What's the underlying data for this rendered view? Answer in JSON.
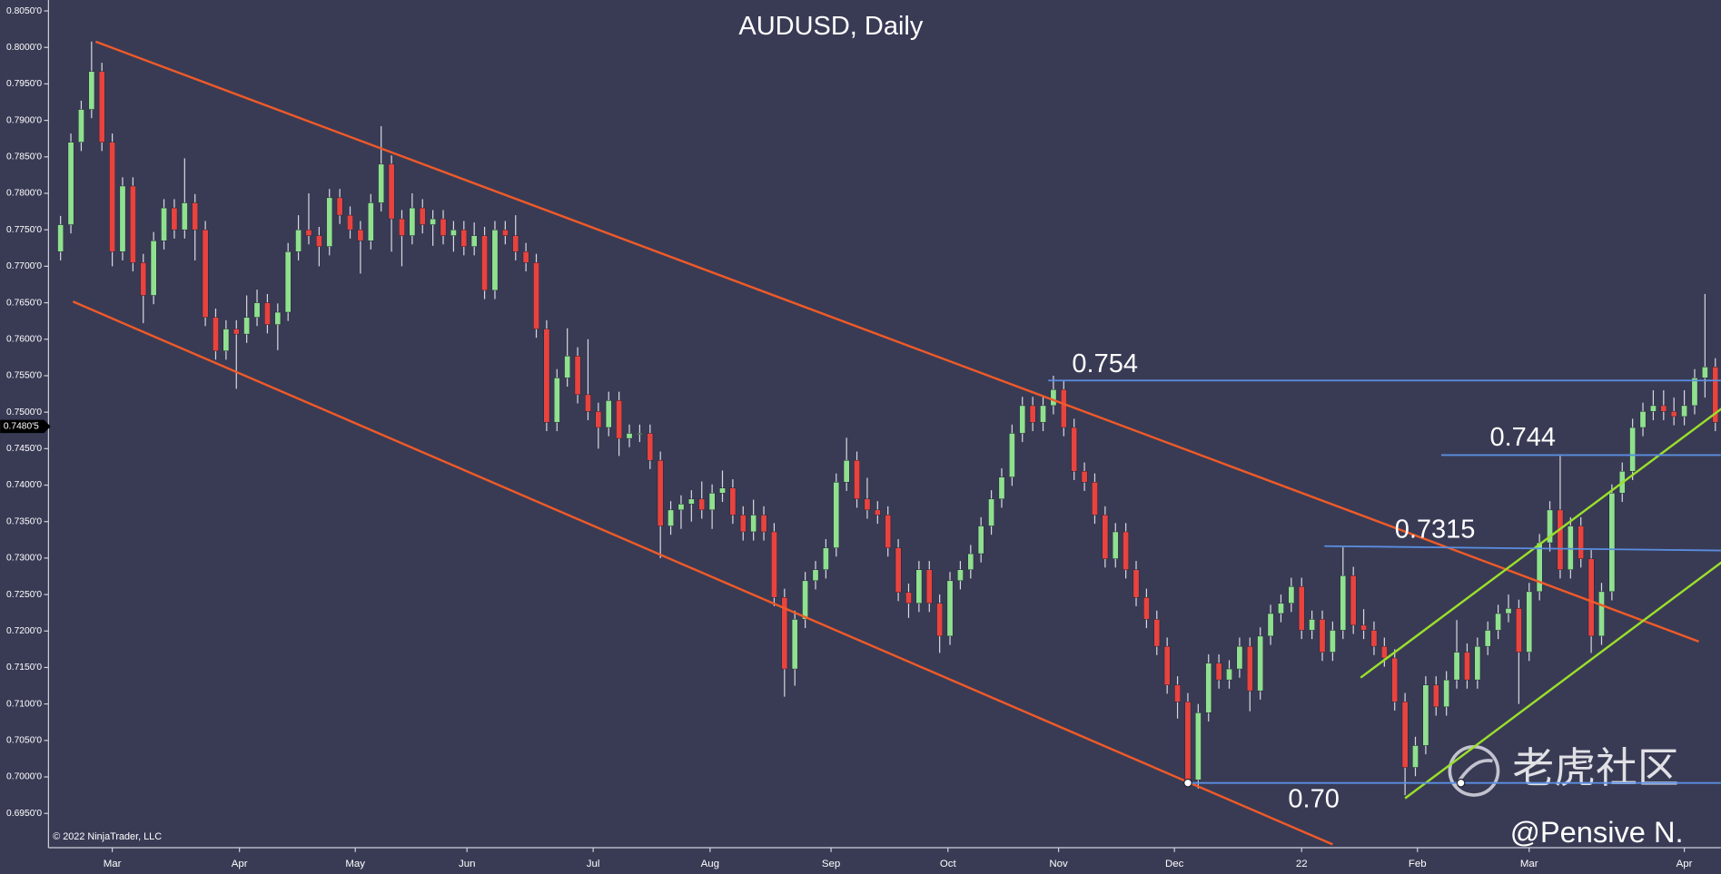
{
  "chart_data": {
    "type": "candlestick",
    "title": "AUDUSD, Daily",
    "copyright": "© 2022 NinjaTrader, LLC",
    "watermark": "老虎社区",
    "author": "@Pensive N.",
    "annotations": [
      "0.754",
      "0.744",
      "0.7315",
      "0.70"
    ],
    "up_color": "#8fe08f",
    "down_color": "#e8433f",
    "open": [
      0.772,
      0.7757,
      0.787,
      0.7915,
      0.7967,
      0.787,
      0.772,
      0.781,
      0.7705,
      0.766,
      0.7735,
      0.778,
      0.775,
      0.7787,
      0.775,
      0.763,
      0.7584,
      0.7614,
      0.7607,
      0.763,
      0.765,
      0.762,
      0.7637,
      0.772,
      0.775,
      0.7742,
      0.7727,
      0.7794,
      0.777,
      0.775,
      0.7735,
      0.7787,
      0.784,
      0.7765,
      0.7742,
      0.778,
      0.7757,
      0.7765,
      0.7742,
      0.775,
      0.7727,
      0.7742,
      0.7667,
      0.775,
      0.7742,
      0.772,
      0.7705,
      0.7614,
      0.7486,
      0.7547,
      0.7577,
      0.7524,
      0.7501,
      0.7479,
      0.7516,
      0.7464,
      0.7471,
      0.7471,
      0.7434,
      0.7344,
      0.7366,
      0.7374,
      0.7381,
      0.7366,
      0.7389,
      0.7396,
      0.7359,
      0.7336,
      0.7359,
      0.7336,
      0.7246,
      0.7148,
      0.7216,
      0.7269,
      0.7284,
      0.7314,
      0.7404,
      0.7434,
      0.7381,
      0.7366,
      0.7359,
      0.7314,
      0.7253,
      0.7238,
      0.7284,
      0.7238,
      0.7193,
      0.7269,
      0.7284,
      0.7306,
      0.7344,
      0.7381,
      0.7411,
      0.7471,
      0.7509,
      0.7486,
      0.7509,
      0.7531,
      0.7479,
      0.7419,
      0.7404,
      0.7359,
      0.7299,
      0.7336,
      0.7284,
      0.7246,
      0.7216,
      0.7179,
      0.7126,
      0.7103,
      0.6996,
      0.7088,
      0.7156,
      0.7133,
      0.7148,
      0.7179,
      0.7118,
      0.7193,
      0.7224,
      0.7238,
      0.7261,
      0.7201,
      0.7216,
      0.7171,
      0.7201,
      0.7276,
      0.7208,
      0.7201,
      0.7179,
      0.7163,
      0.7103,
      0.7013,
      0.7043,
      0.7126,
      0.7096,
      0.7133,
      0.7171,
      0.7133,
      0.7179,
      0.7201,
      0.7224,
      0.7231,
      0.7171,
      0.7254,
      0.7321,
      0.7366,
      0.7284,
      0.7344,
      0.7299,
      0.7193,
      0.7254,
      0.7389,
      0.7419,
      0.7479,
      0.7501,
      0.7509,
      0.7501,
      0.7494,
      0.7509,
      0.7547,
      0.7562
    ],
    "high": [
      0.7769,
      0.7882,
      0.7927,
      0.8008,
      0.7979,
      0.7882,
      0.7822,
      0.7822,
      0.7717,
      0.7747,
      0.7792,
      0.7792,
      0.7848,
      0.7799,
      0.7762,
      0.7642,
      0.7626,
      0.7626,
      0.766,
      0.7668,
      0.7662,
      0.7649,
      0.7732,
      0.777,
      0.78,
      0.7754,
      0.7806,
      0.7806,
      0.7782,
      0.7762,
      0.7799,
      0.7892,
      0.7852,
      0.7777,
      0.78,
      0.7792,
      0.7777,
      0.7777,
      0.7762,
      0.7762,
      0.776,
      0.7754,
      0.7762,
      0.7762,
      0.777,
      0.7732,
      0.7717,
      0.7626,
      0.7559,
      0.7615,
      0.7589,
      0.76,
      0.7513,
      0.7528,
      0.7528,
      0.7483,
      0.7483,
      0.7483,
      0.7446,
      0.7378,
      0.7386,
      0.7393,
      0.7405,
      0.7401,
      0.742,
      0.7408,
      0.7371,
      0.738,
      0.7371,
      0.7348,
      0.7258,
      0.7228,
      0.7281,
      0.7296,
      0.7326,
      0.7416,
      0.7465,
      0.7446,
      0.741,
      0.7378,
      0.7371,
      0.7326,
      0.7265,
      0.7296,
      0.7296,
      0.725,
      0.7281,
      0.7296,
      0.7318,
      0.7356,
      0.7393,
      0.7423,
      0.7483,
      0.7521,
      0.7521,
      0.7521,
      0.755,
      0.7543,
      0.7491,
      0.7431,
      0.7416,
      0.7371,
      0.7348,
      0.7348,
      0.7296,
      0.7258,
      0.7228,
      0.7191,
      0.7138,
      0.7115,
      0.71,
      0.7168,
      0.7168,
      0.716,
      0.7191,
      0.7191,
      0.7205,
      0.7236,
      0.725,
      0.7273,
      0.7273,
      0.7228,
      0.7228,
      0.7213,
      0.7315,
      0.7288,
      0.723,
      0.7213,
      0.7191,
      0.7175,
      0.7115,
      0.7055,
      0.7138,
      0.7138,
      0.7145,
      0.7215,
      0.7183,
      0.7191,
      0.7213,
      0.7236,
      0.725,
      0.7243,
      0.7266,
      0.7333,
      0.7378,
      0.744,
      0.7356,
      0.7356,
      0.7311,
      0.7266,
      0.7401,
      0.7431,
      0.7491,
      0.7513,
      0.753,
      0.753,
      0.752,
      0.753,
      0.7559,
      0.7662,
      0.7574
    ],
    "low": [
      0.7708,
      0.7745,
      0.7858,
      0.7903,
      0.7858,
      0.77,
      0.7708,
      0.7693,
      0.7622,
      0.7648,
      0.7723,
      0.7738,
      0.7738,
      0.7708,
      0.7618,
      0.7572,
      0.7572,
      0.7532,
      0.7595,
      0.7618,
      0.7608,
      0.7585,
      0.7625,
      0.7708,
      0.773,
      0.77,
      0.7715,
      0.7758,
      0.7738,
      0.769,
      0.7723,
      0.7775,
      0.772,
      0.77,
      0.773,
      0.7745,
      0.7728,
      0.773,
      0.772,
      0.7715,
      0.7715,
      0.7655,
      0.7655,
      0.773,
      0.7708,
      0.7693,
      0.7602,
      0.7474,
      0.7474,
      0.7535,
      0.7512,
      0.7489,
      0.745,
      0.7467,
      0.744,
      0.7452,
      0.7459,
      0.7422,
      0.73,
      0.7332,
      0.734,
      0.735,
      0.7354,
      0.734,
      0.7377,
      0.7347,
      0.7324,
      0.7324,
      0.7324,
      0.7234,
      0.711,
      0.7125,
      0.7204,
      0.7257,
      0.7272,
      0.7302,
      0.7392,
      0.7369,
      0.7354,
      0.7347,
      0.7302,
      0.7241,
      0.7218,
      0.7226,
      0.7226,
      0.717,
      0.7181,
      0.7257,
      0.7272,
      0.7294,
      0.7332,
      0.7369,
      0.7399,
      0.7459,
      0.7474,
      0.7474,
      0.7497,
      0.7467,
      0.7407,
      0.7392,
      0.7347,
      0.7287,
      0.7287,
      0.7272,
      0.7234,
      0.7204,
      0.7167,
      0.7114,
      0.708,
      0.699,
      0.6984,
      0.7076,
      0.7121,
      0.7121,
      0.7136,
      0.709,
      0.7106,
      0.7181,
      0.7212,
      0.7226,
      0.7189,
      0.7189,
      0.7159,
      0.7159,
      0.7189,
      0.7196,
      0.7189,
      0.7167,
      0.7151,
      0.7091,
      0.6975,
      0.7001,
      0.7031,
      0.7084,
      0.7084,
      0.7121,
      0.7121,
      0.7121,
      0.7167,
      0.7189,
      0.7212,
      0.71,
      0.7159,
      0.7242,
      0.7309,
      0.7272,
      0.7272,
      0.7287,
      0.717,
      0.7181,
      0.7242,
      0.7377,
      0.7407,
      0.7467,
      0.7489,
      0.7489,
      0.7482,
      0.7482,
      0.7497,
      0.752,
      0.7474
    ],
    "close": [
      0.7757,
      0.787,
      0.7915,
      0.7967,
      0.787,
      0.772,
      0.781,
      0.7705,
      0.766,
      0.7735,
      0.778,
      0.775,
      0.7787,
      0.775,
      0.763,
      0.7584,
      0.7614,
      0.7607,
      0.763,
      0.765,
      0.762,
      0.7637,
      0.772,
      0.775,
      0.7742,
      0.7727,
      0.7794,
      0.777,
      0.775,
      0.7735,
      0.7787,
      0.784,
      0.7765,
      0.7742,
      0.778,
      0.7757,
      0.7765,
      0.7742,
      0.775,
      0.7727,
      0.7742,
      0.7667,
      0.775,
      0.7742,
      0.772,
      0.7705,
      0.7614,
      0.7486,
      0.7547,
      0.7577,
      0.7524,
      0.7501,
      0.7479,
      0.7516,
      0.7464,
      0.7471,
      0.7471,
      0.7434,
      0.7344,
      0.7366,
      0.7374,
      0.7381,
      0.7366,
      0.7389,
      0.7396,
      0.7359,
      0.7336,
      0.7359,
      0.7336,
      0.7246,
      0.7148,
      0.7216,
      0.7269,
      0.7284,
      0.7314,
      0.7404,
      0.7434,
      0.7381,
      0.7366,
      0.7359,
      0.7314,
      0.7253,
      0.7238,
      0.7284,
      0.7238,
      0.7193,
      0.7269,
      0.7284,
      0.7306,
      0.7344,
      0.7381,
      0.7411,
      0.7471,
      0.7509,
      0.7486,
      0.7509,
      0.7531,
      0.7479,
      0.7419,
      0.7404,
      0.7359,
      0.7299,
      0.7336,
      0.7284,
      0.7246,
      0.7216,
      0.7179,
      0.7126,
      0.7103,
      0.6996,
      0.7088,
      0.7156,
      0.7133,
      0.7148,
      0.7179,
      0.7118,
      0.7193,
      0.7224,
      0.7238,
      0.7261,
      0.7201,
      0.7216,
      0.7171,
      0.7201,
      0.7276,
      0.7208,
      0.7201,
      0.7179,
      0.7163,
      0.7103,
      0.7013,
      0.7043,
      0.7126,
      0.7096,
      0.7133,
      0.7171,
      0.7133,
      0.7179,
      0.7201,
      0.7224,
      0.7231,
      0.7171,
      0.7254,
      0.7321,
      0.7366,
      0.7284,
      0.7344,
      0.7299,
      0.7193,
      0.7254,
      0.7389,
      0.7419,
      0.7479,
      0.7501,
      0.7509,
      0.7501,
      0.7494,
      0.7509,
      0.7547,
      0.7562,
      0.7486
    ],
    "ylim": [
      0.6903,
      0.8065
    ],
    "yticks": [
      {
        "value": 0.695,
        "label": "0.6950'0"
      },
      {
        "value": 0.7,
        "label": "0.7000'0"
      },
      {
        "value": 0.705,
        "label": "0.7050'0"
      },
      {
        "value": 0.71,
        "label": "0.7100'0"
      },
      {
        "value": 0.715,
        "label": "0.7150'0"
      },
      {
        "value": 0.72,
        "label": "0.7200'0"
      },
      {
        "value": 0.725,
        "label": "0.7250'0"
      },
      {
        "value": 0.73,
        "label": "0.7300'0"
      },
      {
        "value": 0.735,
        "label": "0.7350'0"
      },
      {
        "value": 0.74,
        "label": "0.7400'0"
      },
      {
        "value": 0.745,
        "label": "0.7450'0"
      },
      {
        "value": 0.75,
        "label": "0.7500'0"
      },
      {
        "value": 0.755,
        "label": "0.7550'0"
      },
      {
        "value": 0.76,
        "label": "0.7600'0"
      },
      {
        "value": 0.765,
        "label": "0.7650'0"
      },
      {
        "value": 0.77,
        "label": "0.7700'0"
      },
      {
        "value": 0.775,
        "label": "0.7750'0"
      },
      {
        "value": 0.78,
        "label": "0.7800'0"
      },
      {
        "value": 0.785,
        "label": "0.7850'0"
      },
      {
        "value": 0.79,
        "label": "0.7900'0"
      },
      {
        "value": 0.795,
        "label": "0.7950'0"
      },
      {
        "value": 0.8,
        "label": "0.8000'0"
      },
      {
        "value": 0.805,
        "label": "0.8050'0"
      }
    ],
    "xticks": [
      {
        "value": 5,
        "label": "Mar"
      },
      {
        "value": 17.3,
        "label": "Apr"
      },
      {
        "value": 28.5,
        "label": "May"
      },
      {
        "value": 39.3,
        "label": "Jun"
      },
      {
        "value": 51.5,
        "label": "Jul"
      },
      {
        "value": 62.8,
        "label": "Aug"
      },
      {
        "value": 74.5,
        "label": "Sep"
      },
      {
        "value": 85.8,
        "label": "Oct"
      },
      {
        "value": 96.5,
        "label": "Nov"
      },
      {
        "value": 107.7,
        "label": "Dec"
      },
      {
        "value": 120,
        "label": "22"
      },
      {
        "value": 131.2,
        "label": "Feb"
      },
      {
        "value": 142,
        "label": "Mar"
      },
      {
        "value": 157,
        "label": "Apr"
      }
    ],
    "last_price": {
      "value": 0.74805,
      "label": "0.7480'5"
    }
  }
}
